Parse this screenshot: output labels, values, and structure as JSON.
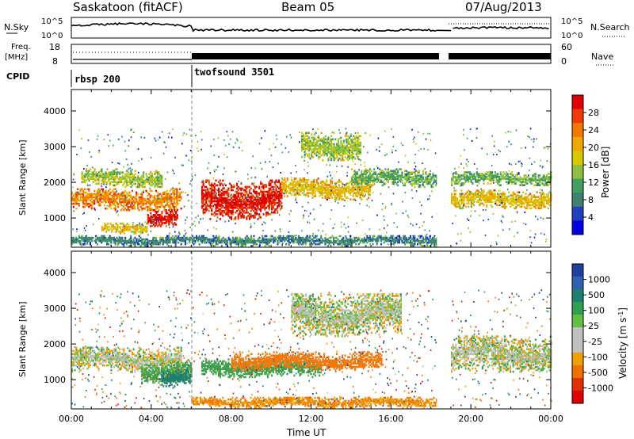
{
  "header": {
    "station": "Saskatoon (fitACF)",
    "beam": "Beam 05",
    "date": "07/Aug/2013"
  },
  "strip_labels": {
    "nsky": "N.Sky",
    "nsky_ticks": [
      "10^5",
      "10^0"
    ],
    "nsearch": "N.Search",
    "freq": "Freq.",
    "freq_unit": "[MHz]",
    "freq_ticks": [
      "18",
      "8"
    ],
    "nave": "Nave",
    "nave_ticks": [
      "60",
      "0"
    ],
    "cpid": "CPID",
    "programs": [
      "rbsp 200",
      "twofsound 3501"
    ]
  },
  "power_colorbar": {
    "label": "Power [dB]",
    "ticks": [
      "28",
      "24",
      "20",
      "16",
      "12",
      "8",
      "4"
    ],
    "colors": [
      "#e00000",
      "#f03a00",
      "#f07800",
      "#f0a800",
      "#d8c800",
      "#90c040",
      "#40a060",
      "#408070",
      "#2040c0",
      "#0000e0"
    ]
  },
  "velocity_colorbar": {
    "label": "Velocity [m s",
    "label_sup": "-1",
    "label_end": "]",
    "ticks": [
      "1000",
      "500",
      "100",
      "25",
      "-25",
      "-100",
      "-500",
      "-1000"
    ],
    "colors": [
      "#2040a0",
      "#3060b0",
      "#208070",
      "#30a050",
      "#60c040",
      "#c0c0c0",
      "#c0c0c0",
      "#f0a000",
      "#f07000",
      "#e03000",
      "#e00000"
    ]
  },
  "axes": {
    "ylabel": "Slant Range [km]",
    "xlabel": "Time UT",
    "yticks": [
      "4000",
      "3000",
      "2000",
      "1000"
    ],
    "xticks": [
      "00:00",
      "04:00",
      "08:00",
      "12:00",
      "16:00",
      "20:00",
      "00:00"
    ]
  },
  "chart_data": [
    {
      "type": "heatmap",
      "title": "Power",
      "xlabel": "Time UT",
      "ylabel": "Slant Range [km]",
      "xlim": [
        0,
        24
      ],
      "ylim": [
        180,
        4600
      ],
      "zlabel": "Power [dB]",
      "zlim": [
        0,
        30
      ],
      "bands": [
        {
          "t0": 0.0,
          "t1": 5.5,
          "r": 1500,
          "w": 300,
          "v": 22
        },
        {
          "t0": 0.5,
          "t1": 4.5,
          "r": 2100,
          "w": 250,
          "v": 14
        },
        {
          "t0": 1.5,
          "t1": 3.8,
          "r": 700,
          "w": 150,
          "v": 18
        },
        {
          "t0": 3.8,
          "t1": 5.3,
          "r": 1000,
          "w": 250,
          "v": 28
        },
        {
          "t0": 6.5,
          "t1": 10.5,
          "r": 1500,
          "w": 550,
          "v": 28
        },
        {
          "t0": 10.5,
          "t1": 15.0,
          "r": 1800,
          "w": 300,
          "v": 18
        },
        {
          "t0": 11.5,
          "t1": 14.5,
          "r": 3000,
          "w": 400,
          "v": 14
        },
        {
          "t0": 14.0,
          "t1": 18.3,
          "r": 2100,
          "w": 250,
          "v": 12
        },
        {
          "t0": 19.0,
          "t1": 24.0,
          "r": 1500,
          "w": 250,
          "v": 18
        },
        {
          "t0": 19.0,
          "t1": 24.0,
          "r": 2100,
          "w": 200,
          "v": 12
        },
        {
          "t0": 0.0,
          "t1": 18.3,
          "r": 350,
          "w": 150,
          "v": 8
        }
      ]
    },
    {
      "type": "heatmap",
      "title": "Velocity",
      "xlabel": "Time UT",
      "ylabel": "Slant Range [km]",
      "xlim": [
        0,
        24
      ],
      "ylim": [
        180,
        4600
      ],
      "zlabel": "Velocity [m s-1]",
      "zlim": [
        -1000,
        1000
      ],
      "bands": [
        {
          "t0": 0.0,
          "t1": 5.5,
          "r": 1550,
          "w": 350,
          "v": 0
        },
        {
          "t0": 3.5,
          "t1": 6.0,
          "r": 1200,
          "w": 300,
          "v": 100
        },
        {
          "t0": 4.5,
          "t1": 6.0,
          "r": 1000,
          "w": 250,
          "v": 300
        },
        {
          "t0": 6.5,
          "t1": 12.5,
          "r": 1300,
          "w": 250,
          "v": 150
        },
        {
          "t0": 8.0,
          "t1": 15.5,
          "r": 1500,
          "w": 250,
          "v": -400
        },
        {
          "t0": 11.0,
          "t1": 16.5,
          "r": 2800,
          "w": 600,
          "v": 0
        },
        {
          "t0": 19.0,
          "t1": 24.0,
          "r": 1700,
          "w": 500,
          "v": 0
        },
        {
          "t0": 6.0,
          "t1": 18.3,
          "r": 350,
          "w": 150,
          "v": -200
        }
      ]
    }
  ]
}
